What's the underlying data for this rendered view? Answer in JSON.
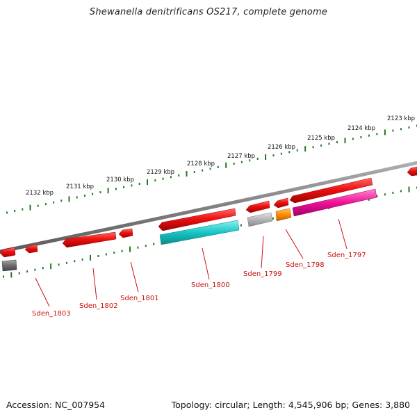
{
  "title": "Shewanella denitrificans OS217, complete genome",
  "footer": {
    "accession": "Accession: NC_007954",
    "summary": "Topology: circular; Length: 4,545,906 bp; Genes: 3,880"
  },
  "kbp_labels": [
    {
      "text": "2123 kbp",
      "kbp": 2123
    },
    {
      "text": "2124 kbp",
      "kbp": 2124
    },
    {
      "text": "2125 kbp",
      "kbp": 2125
    },
    {
      "text": "2126 kbp",
      "kbp": 2126
    },
    {
      "text": "2127 kbp",
      "kbp": 2127
    },
    {
      "text": "2128 kbp",
      "kbp": 2128
    },
    {
      "text": "2129 kbp",
      "kbp": 2129
    },
    {
      "text": "2130 kbp",
      "kbp": 2130
    },
    {
      "text": "2131 kbp",
      "kbp": 2131
    },
    {
      "text": "2132 kbp",
      "kbp": 2132
    }
  ],
  "gene_labels": [
    {
      "text": "Sden_1797"
    },
    {
      "text": "Sden_1798"
    },
    {
      "text": "Sden_1799"
    },
    {
      "text": "Sden_1800"
    },
    {
      "text": "Sden_1801"
    },
    {
      "text": "Sden_1802"
    },
    {
      "text": "Sden_1803"
    }
  ],
  "colors": {
    "backbone": "#8a8a8a",
    "tick": "#1f7a1f",
    "cds": "#ee1111",
    "gene_label": "#cc1111",
    "cyan": "#17c5c5",
    "magenta": "#ee1199",
    "orange": "#ff8c00",
    "gray": "#aaaaaa",
    "dark_gray": "#6c6c6c"
  }
}
